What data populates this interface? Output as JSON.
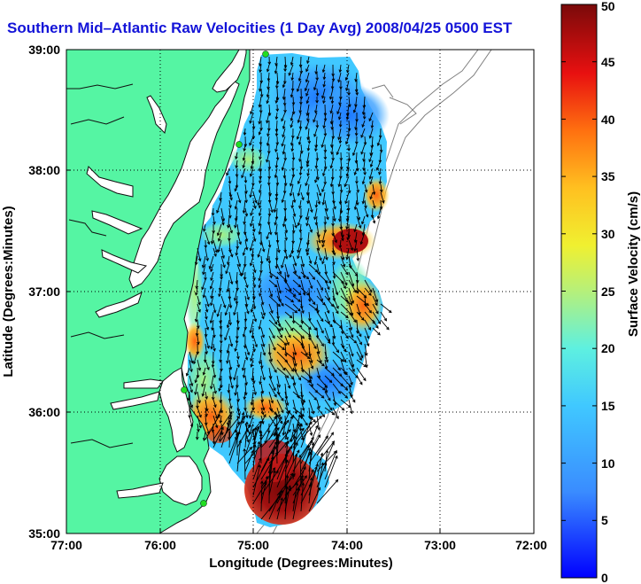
{
  "title": "Southern Mid–Atlantic Raw Velocities (1 Day Avg) 2008/04/25 0500 EST",
  "map": {
    "x_axis": {
      "label": "Longitude (Degrees:Minutes)",
      "ticks": [
        "77:00",
        "76:00",
        "75:00",
        "74:00",
        "73:00",
        "72:00"
      ],
      "range": [
        -77,
        -72
      ]
    },
    "y_axis": {
      "label": "Latitude (Degrees:Minutes)",
      "ticks": [
        "35:00",
        "36:00",
        "37:00",
        "38:00",
        "39:00"
      ],
      "range": [
        35,
        39
      ]
    },
    "grid": true,
    "land_color": "#55f5a3",
    "coastline_color": "#111111",
    "bathymetry_color": "#808080",
    "vector_color": "#000000",
    "station_color": "#22dd22"
  },
  "colorbar": {
    "label": "Surface Velocity (cm/s)",
    "ticks": [
      "0",
      "5",
      "10",
      "15",
      "20",
      "25",
      "30",
      "35",
      "40",
      "45",
      "50"
    ],
    "range": [
      0,
      50
    ],
    "colormap": "jet"
  }
}
